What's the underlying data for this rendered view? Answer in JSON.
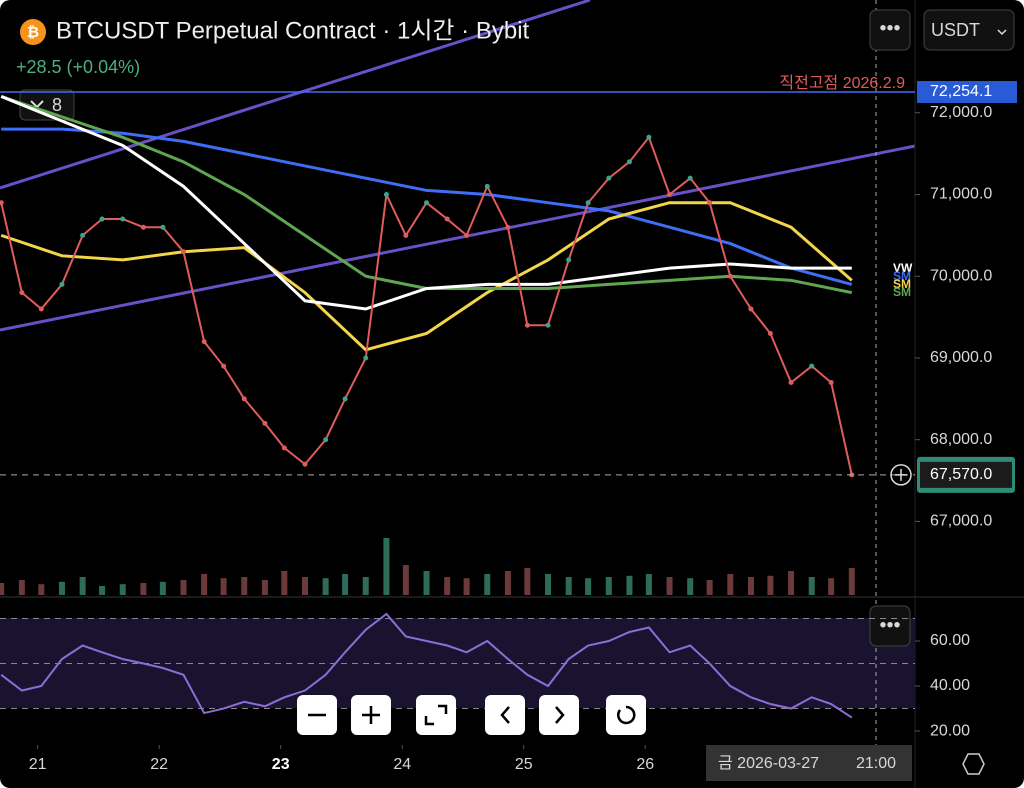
{
  "chart_data": {
    "type": "line",
    "title": "BTCUSDT Perpetual Contract · 1시간 · Bybit",
    "change": "+28.5 (+0.04%)",
    "indicator_count": "8",
    "currency": "USDT",
    "previous_high_label": "직전고점 2026.2.9",
    "previous_high": {
      "value": 72254.1,
      "label": "72,254.1"
    },
    "last_price": {
      "value": 67570,
      "label": "67,570.0"
    },
    "legend_tags": [
      "VW",
      "SM",
      "SM",
      "SM"
    ],
    "crosshair_date": "금 2026-03-27",
    "crosshair_time": "21:00",
    "xlim": [
      20.69,
      28.22
    ],
    "xticks": [
      21,
      22,
      23,
      24,
      25,
      26
    ],
    "ylim": [
      66100,
      73380
    ],
    "yticks": [
      {
        "value": 67000,
        "label": "67,000.0"
      },
      {
        "value": 68000,
        "label": "68,000.0"
      },
      {
        "value": 69000,
        "label": "69,000.0"
      },
      {
        "value": 70000,
        "label": "70,000.0"
      },
      {
        "value": 71000,
        "label": "71,000.0"
      },
      {
        "value": 72000,
        "label": "72,000.0"
      }
    ],
    "x": [
      20.7,
      20.87,
      21.03,
      21.2,
      21.37,
      21.53,
      21.7,
      21.87,
      22.03,
      22.2,
      22.37,
      22.53,
      22.7,
      22.87,
      23.03,
      23.2,
      23.37,
      23.53,
      23.7,
      23.87,
      24.03,
      24.2,
      24.37,
      24.53,
      24.7,
      24.87,
      25.03,
      25.2,
      25.37,
      25.53,
      25.7,
      25.87,
      26.03,
      26.2,
      26.37,
      26.53,
      26.7,
      26.87,
      27.03,
      27.2,
      27.37,
      27.53,
      27.7
    ],
    "price": {
      "name": "BTCUSDT",
      "color": "#e05c5c",
      "values": [
        70900,
        69800,
        69600,
        69900,
        70500,
        70700,
        70700,
        70600,
        70600,
        70300,
        69200,
        68900,
        68500,
        68200,
        67900,
        67700,
        68000,
        68500,
        69000,
        71000,
        70500,
        70900,
        70700,
        70500,
        71100,
        70600,
        69400,
        69400,
        70200,
        70900,
        71200,
        71400,
        71700,
        71000,
        71200,
        70900,
        70000,
        69600,
        69300,
        68700,
        68900,
        68700,
        67570
      ]
    },
    "volume": {
      "color": "#6b3a3a",
      "ylim": [
        0,
        100
      ],
      "values": [
        20,
        25,
        18,
        22,
        30,
        15,
        18,
        20,
        22,
        25,
        35,
        28,
        30,
        25,
        40,
        30,
        28,
        35,
        30,
        95,
        50,
        40,
        30,
        28,
        35,
        40,
        45,
        35,
        30,
        28,
        30,
        32,
        35,
        30,
        28,
        25,
        35,
        30,
        32,
        40,
        30,
        28,
        45
      ]
    },
    "series": [
      {
        "name": "SMA blue",
        "color": "#3d6ef5",
        "x": [
          20.7,
          21.2,
          21.7,
          22.2,
          22.7,
          23.2,
          23.7,
          24.2,
          24.7,
          25.2,
          25.7,
          26.2,
          26.7,
          27.2,
          27.7
        ],
        "values": [
          71800,
          71800,
          71750,
          71650,
          71500,
          71350,
          71200,
          71050,
          71000,
          70900,
          70800,
          70600,
          70400,
          70100,
          69900
        ]
      },
      {
        "name": "SMA yellow",
        "color": "#f2d54a",
        "x": [
          20.7,
          21.2,
          21.7,
          22.2,
          22.7,
          23.2,
          23.7,
          24.2,
          24.7,
          25.2,
          25.7,
          26.2,
          26.7,
          27.2,
          27.7
        ],
        "values": [
          70500,
          70250,
          70200,
          70300,
          70350,
          69800,
          69100,
          69300,
          69800,
          70200,
          70700,
          70900,
          70900,
          70600,
          69950
        ]
      },
      {
        "name": "SMA green",
        "color": "#5fa650",
        "x": [
          20.7,
          21.2,
          21.7,
          22.2,
          22.7,
          23.2,
          23.7,
          24.2,
          24.7,
          25.2,
          25.7,
          26.2,
          26.7,
          27.2,
          27.7
        ],
        "values": [
          72200,
          71950,
          71700,
          71400,
          71000,
          70500,
          70000,
          69850,
          69850,
          69850,
          69900,
          69950,
          70000,
          69950,
          69800
        ]
      },
      {
        "name": "VWAP",
        "color": "#ffffff",
        "x": [
          20.7,
          21.2,
          21.7,
          22.2,
          22.7,
          23.2,
          23.7,
          24.2,
          24.7,
          25.2,
          25.7,
          26.2,
          26.7,
          27.2,
          27.7
        ],
        "values": [
          72200,
          71900,
          71600,
          71100,
          70400,
          69700,
          69600,
          69850,
          69900,
          69900,
          70000,
          70100,
          70150,
          70100,
          70100
        ]
      }
    ],
    "rsi": {
      "color": "#8b6fd6",
      "ylim": [
        13.8,
        76
      ],
      "yticks": [
        {
          "value": 20,
          "label": "20.00"
        },
        {
          "value": 40,
          "label": "40.00"
        },
        {
          "value": 60,
          "label": "60.00"
        }
      ],
      "levels": [
        30,
        50,
        70
      ],
      "values": [
        45,
        38,
        40,
        52,
        58,
        55,
        52,
        50,
        48,
        45,
        28,
        30,
        33,
        31,
        35,
        38,
        45,
        55,
        65,
        72,
        62,
        60,
        58,
        55,
        60,
        52,
        45,
        40,
        52,
        58,
        60,
        64,
        66,
        55,
        58,
        50,
        40,
        35,
        32,
        30,
        35,
        32,
        26
      ]
    }
  }
}
